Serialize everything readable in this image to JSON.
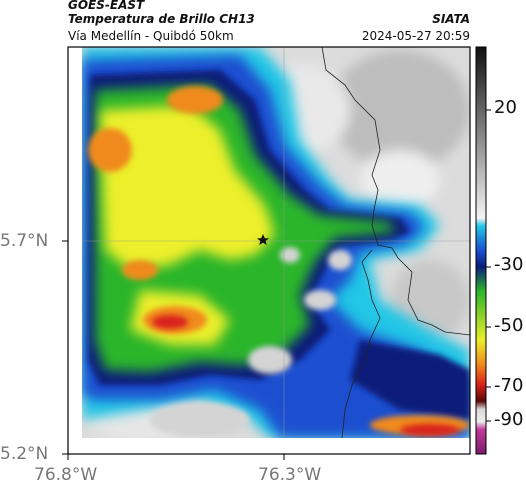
{
  "header": {
    "satellite": "GOES-EAST",
    "product": "Temperatura de Brillo CH13",
    "route": "Vía Medellín - Quibdó 50km",
    "organization": "SIATA",
    "timestamp": "2024-05-27 20:59"
  },
  "map": {
    "lat_labels": [
      "5.7°N",
      "5.2°N"
    ],
    "lon_labels": [
      "76.8°W",
      "76.3°W"
    ],
    "marker_icon": "star-icon"
  },
  "colorbar": {
    "tick_labels": [
      "20",
      "-30",
      "-50",
      "-70",
      "-90"
    ],
    "colors": {
      "warm_gray_top": "#2a2a2a",
      "warm_gray_bottom": "#f2f2f2",
      "cyan": "#22c6e6",
      "blue": "#1a4fd0",
      "navy": "#0b1c7a",
      "green": "#2cb52c",
      "yellow": "#ecef2a",
      "orange": "#f08a1e",
      "red": "#d8201a",
      "dark_red": "#5a0a06",
      "magenta": "#c23a9a"
    }
  }
}
